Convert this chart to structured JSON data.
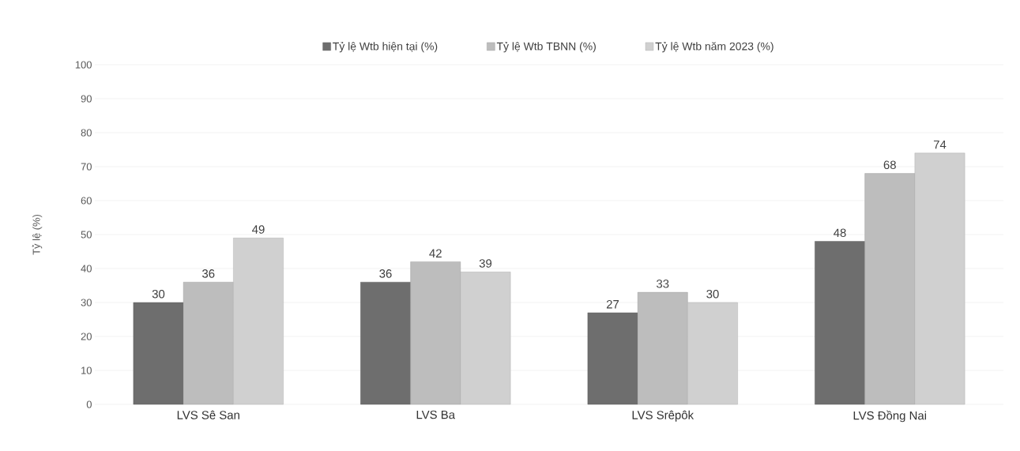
{
  "chart_data": {
    "type": "bar",
    "ylabel": "Tỷ lệ (%)",
    "categories": [
      "LVS Sê San",
      "LVS Ba",
      "LVS Srêpôk",
      "LVS Đồng Nai"
    ],
    "series": [
      {
        "name": "Tỷ lệ Wtb hiện tại (%)",
        "color": "#6e6e6e",
        "values": [
          30,
          36,
          27,
          48
        ]
      },
      {
        "name": "Tỷ lệ Wtb TBNN (%)",
        "color": "#bdbdbd",
        "values": [
          36,
          42,
          33,
          68
        ]
      },
      {
        "name": "Tỷ lệ Wtb năm 2023 (%)",
        "color": "#d0d0d0",
        "values": [
          49,
          39,
          30,
          74
        ]
      }
    ],
    "ylim": [
      0,
      100
    ],
    "yticks": [
      0,
      10,
      20,
      30,
      40,
      50,
      60,
      70,
      80,
      90,
      100
    ],
    "grid": "y",
    "legend": "top",
    "data_labels": true
  }
}
